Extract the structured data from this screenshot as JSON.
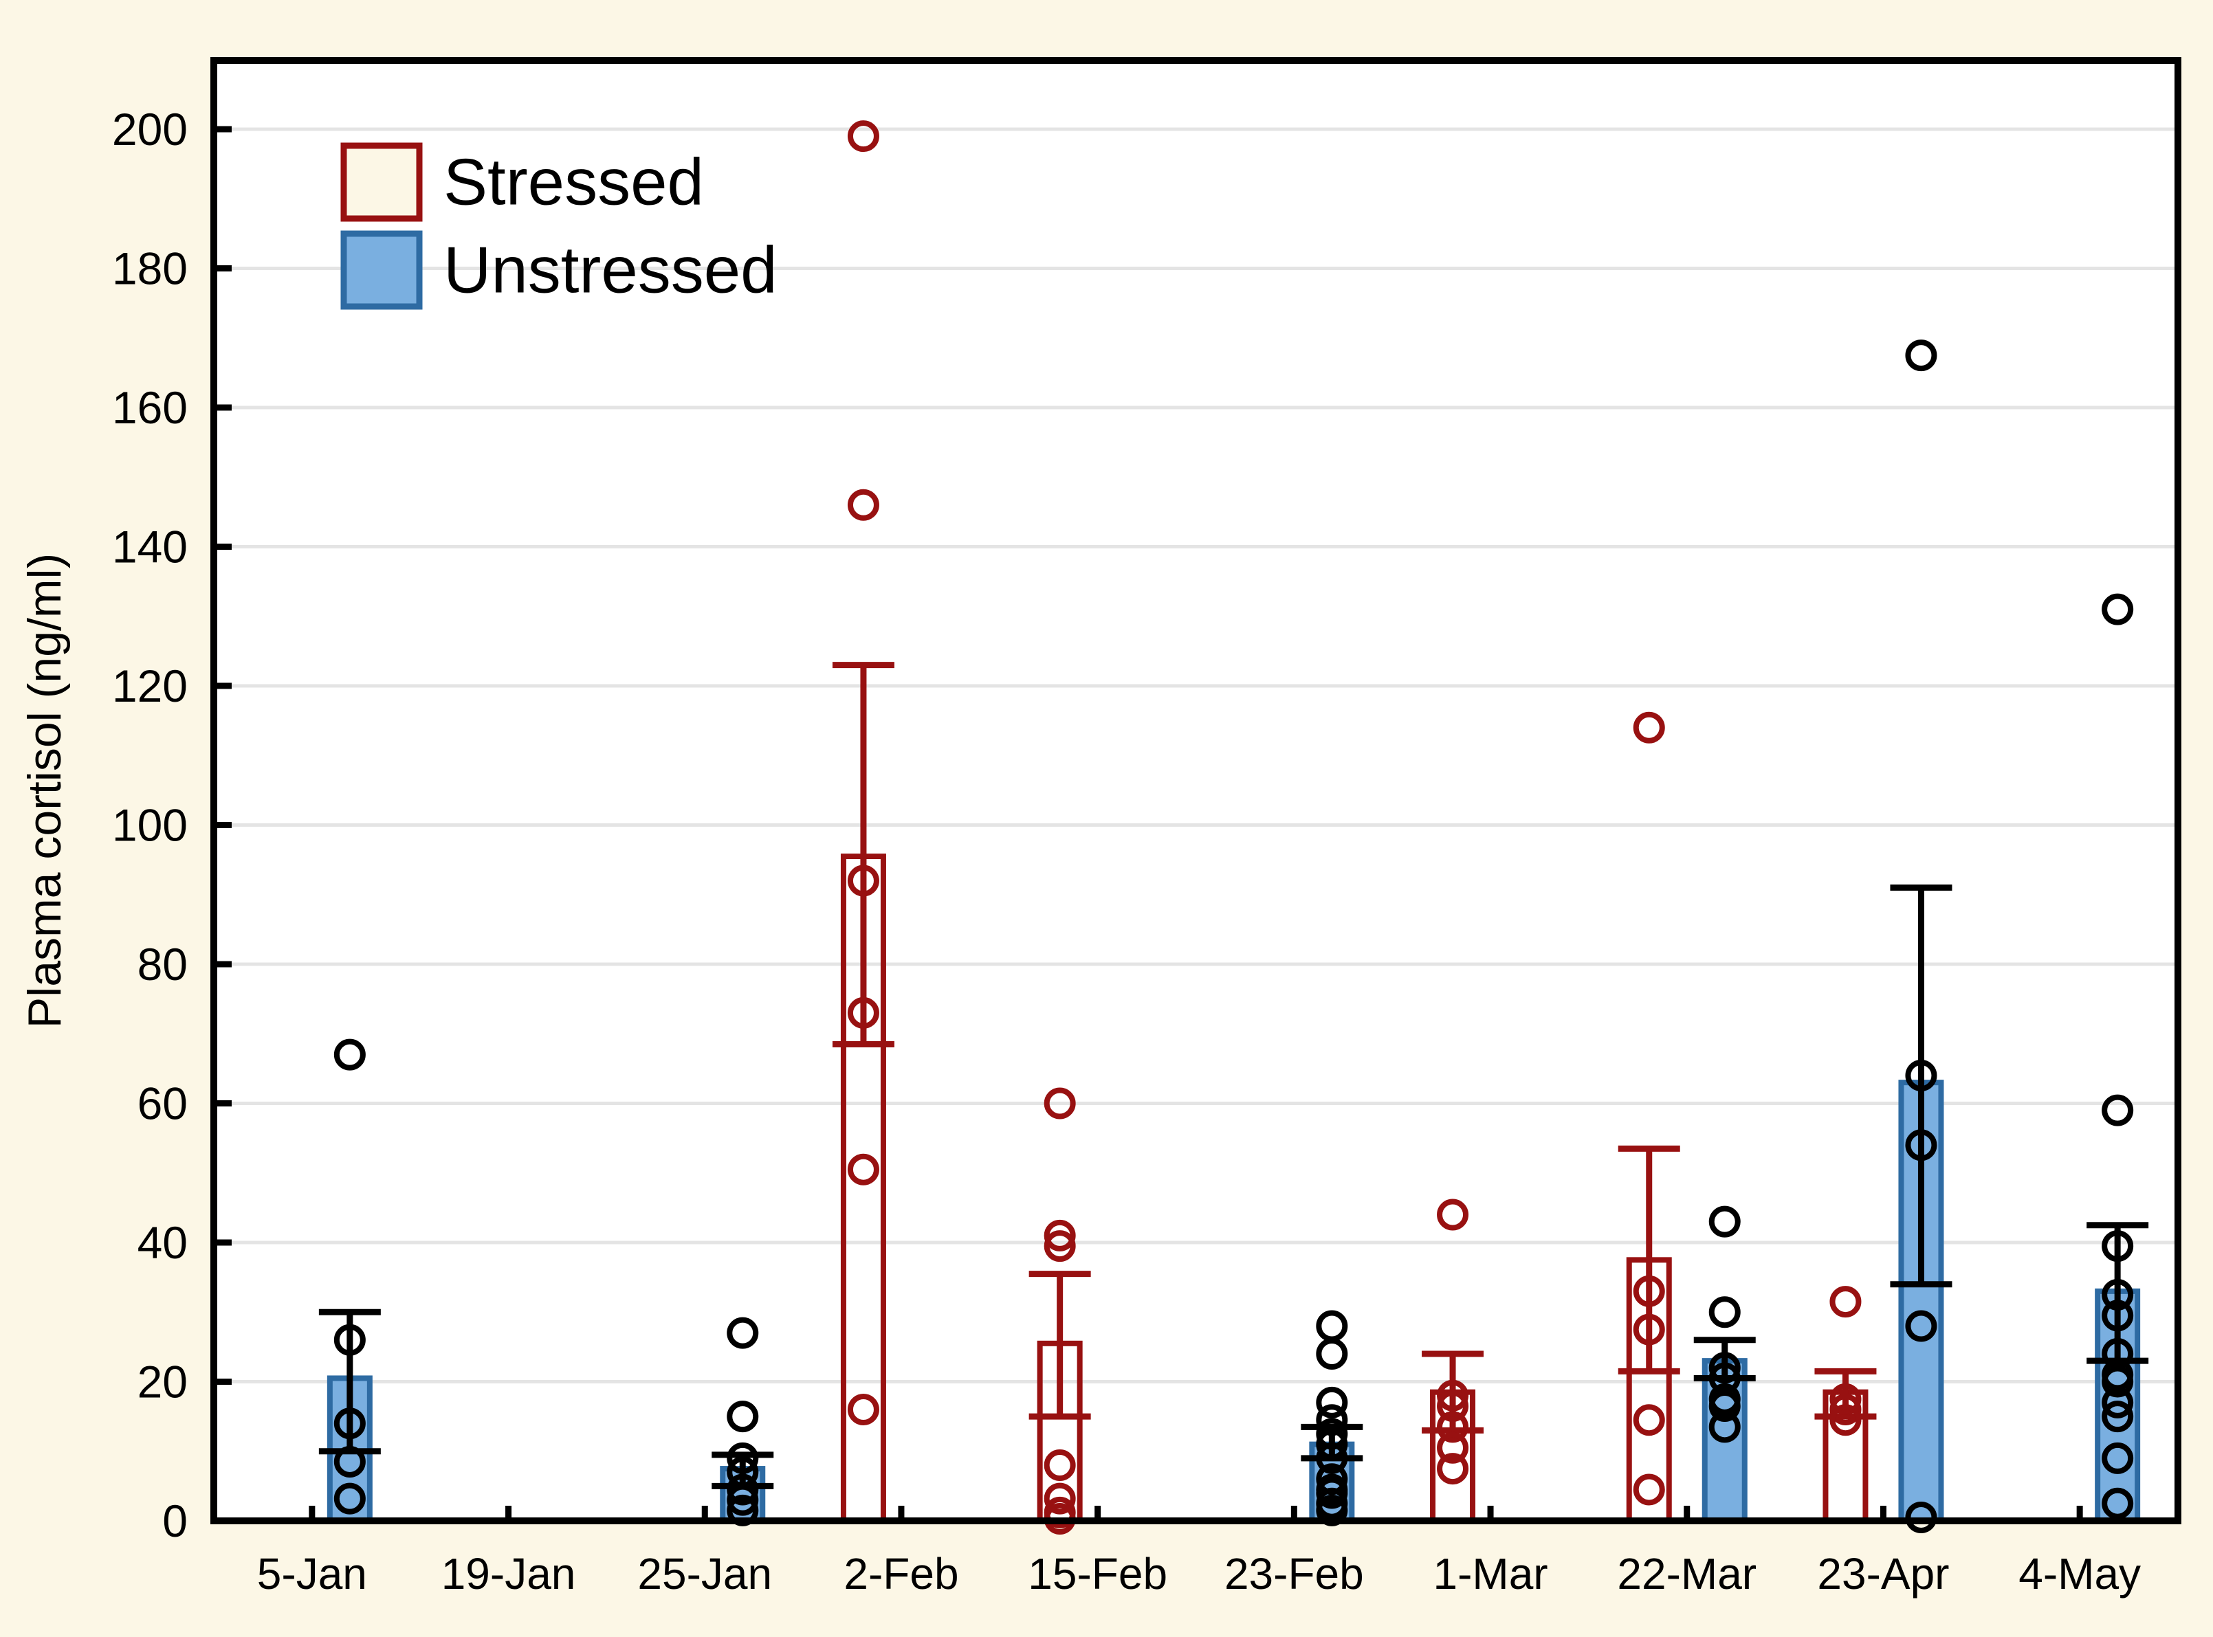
{
  "page": {
    "background_color": "#fcf7e6",
    "plot_background_color": "#ffffff",
    "gridline_color": "#e4e4e4",
    "frame_color": "#000000",
    "accent_red": "#981111",
    "accent_blue_fill": "#7aafe0",
    "accent_blue_edge": "#2e6ba3"
  },
  "legend": {
    "items": [
      {
        "label": "Stressed",
        "swatch_fill": "#fcf7e6",
        "swatch_edge": "#981111"
      },
      {
        "label": "Unstressed",
        "swatch_fill": "#7aafe0",
        "swatch_edge": "#2e6ba3"
      }
    ]
  },
  "chart_data": {
    "type": "bar",
    "title": "",
    "xlabel": "",
    "ylabel": "Plasma cortisol (ng/ml)",
    "ylim": [
      0,
      210
    ],
    "yticks": [
      0,
      20,
      40,
      60,
      80,
      100,
      120,
      140,
      160,
      180,
      200
    ],
    "grid": "horizontal",
    "legend_position": "top-left-inside",
    "bar_style": "mean with SEM error bars and overlaid individual data points (open circles)",
    "categories": [
      "5-Jan",
      "19-Jan",
      "25-Jan",
      "2-Feb",
      "15-Feb",
      "23-Feb",
      "1-Mar",
      "22-Mar",
      "23-Apr",
      "4-May"
    ],
    "series": [
      {
        "name": "Stressed",
        "slot": "left",
        "bar_fill": "none",
        "color": "#981111",
        "point_color": "#981111",
        "error_color": "#981111",
        "means": [
          null,
          null,
          null,
          95.5,
          25.5,
          null,
          18.5,
          37.5,
          18.5,
          null
        ],
        "err_low": [
          null,
          null,
          null,
          68.5,
          15.0,
          null,
          13.0,
          21.5,
          15.0,
          null
        ],
        "err_high": [
          null,
          null,
          null,
          123.0,
          35.5,
          null,
          24.0,
          53.5,
          21.5,
          null
        ],
        "points": [
          [],
          [],
          [],
          [
            199,
            146,
            92,
            73,
            50.5,
            16
          ],
          [
            60,
            41,
            39.5,
            8,
            3.2,
            1.2,
            0.3
          ],
          [],
          [
            44,
            18,
            16.5,
            13.5,
            10.5,
            7.5
          ],
          [
            114,
            33,
            27.5,
            14.5,
            4.5
          ],
          [
            31.5,
            17.5,
            16,
            14.5
          ],
          []
        ]
      },
      {
        "name": "Unstressed",
        "slot": "right",
        "bar_fill": "#7aafe0",
        "color": "#2e6ba3",
        "point_color": "#000000",
        "error_color": "#000000",
        "means": [
          20.5,
          null,
          7.5,
          null,
          null,
          11.0,
          null,
          23.0,
          63.0,
          33.0
        ],
        "err_low": [
          10.0,
          null,
          5.0,
          null,
          null,
          9.0,
          null,
          20.5,
          34.0,
          23.0
        ],
        "err_high": [
          30.0,
          null,
          9.5,
          null,
          null,
          13.5,
          null,
          26.0,
          91.0,
          42.5
        ],
        "points": [
          [
            67,
            26,
            14,
            8.5,
            3.2
          ],
          [],
          [
            27,
            15,
            9,
            7,
            4.5,
            3,
            1.5
          ],
          [],
          [],
          [
            28,
            24,
            17,
            14.5,
            12.5,
            11,
            9,
            6,
            4.5,
            4,
            2.5,
            1.5
          ],
          [],
          [
            43,
            30,
            22,
            20.5,
            17.5,
            16.5,
            13.5
          ],
          [
            167.5,
            64,
            54,
            28,
            0.5
          ],
          [
            131,
            59,
            39.5,
            32.5,
            29.5,
            24,
            21,
            20,
            17,
            15,
            9,
            2.5
          ]
        ]
      }
    ]
  }
}
